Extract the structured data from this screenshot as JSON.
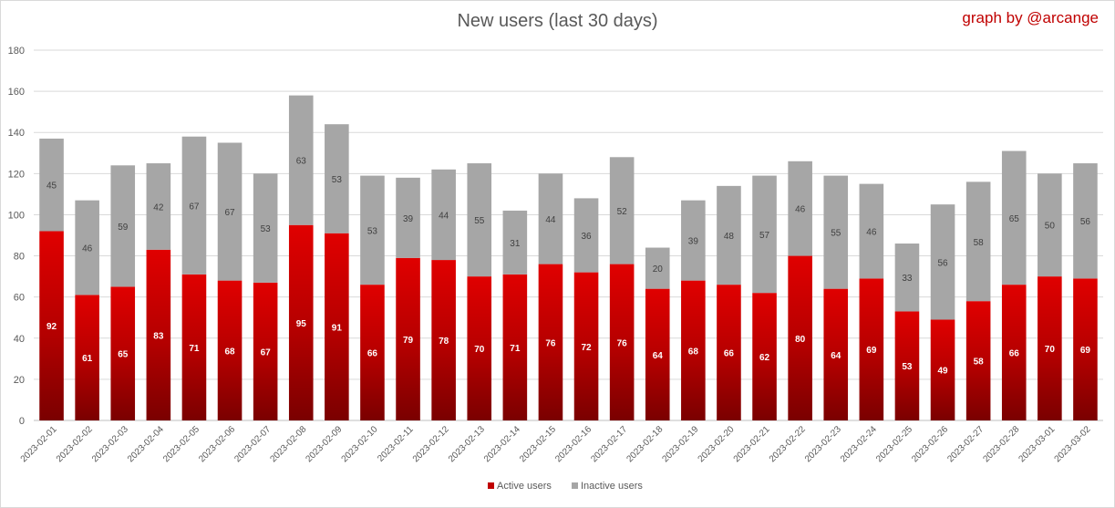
{
  "chart_data": {
    "type": "bar",
    "stacked": true,
    "title": "New users (last 30 days)",
    "credit": "graph by @arcange",
    "categories": [
      "2023-02-01",
      "2023-02-02",
      "2023-02-03",
      "2023-02-04",
      "2023-02-05",
      "2023-02-06",
      "2023-02-07",
      "2023-02-08",
      "2023-02-09",
      "2023-02-10",
      "2023-02-11",
      "2023-02-12",
      "2023-02-13",
      "2023-02-14",
      "2023-02-15",
      "2023-02-16",
      "2023-02-17",
      "2023-02-18",
      "2023-02-19",
      "2023-02-20",
      "2023-02-21",
      "2023-02-22",
      "2023-02-23",
      "2023-02-24",
      "2023-02-25",
      "2023-02-26",
      "2023-02-27",
      "2023-02-28",
      "2023-03-01",
      "2023-03-02"
    ],
    "series": [
      {
        "name": "Active users",
        "color": "#c00000",
        "values": [
          92,
          61,
          65,
          83,
          71,
          68,
          67,
          95,
          91,
          66,
          79,
          78,
          70,
          71,
          76,
          72,
          76,
          64,
          68,
          66,
          62,
          80,
          64,
          69,
          53,
          49,
          58,
          66,
          70,
          69
        ]
      },
      {
        "name": "Inactive users",
        "color": "#a6a6a6",
        "values": [
          45,
          46,
          59,
          42,
          67,
          67,
          53,
          63,
          53,
          53,
          39,
          44,
          55,
          31,
          44,
          36,
          52,
          20,
          39,
          48,
          57,
          46,
          55,
          46,
          33,
          56,
          58,
          65,
          50,
          56
        ]
      }
    ],
    "ylim": [
      0,
      180
    ],
    "yticks": [
      0,
      20,
      40,
      60,
      80,
      100,
      120,
      140,
      160,
      180
    ],
    "grid": true,
    "legend": "bottom"
  }
}
